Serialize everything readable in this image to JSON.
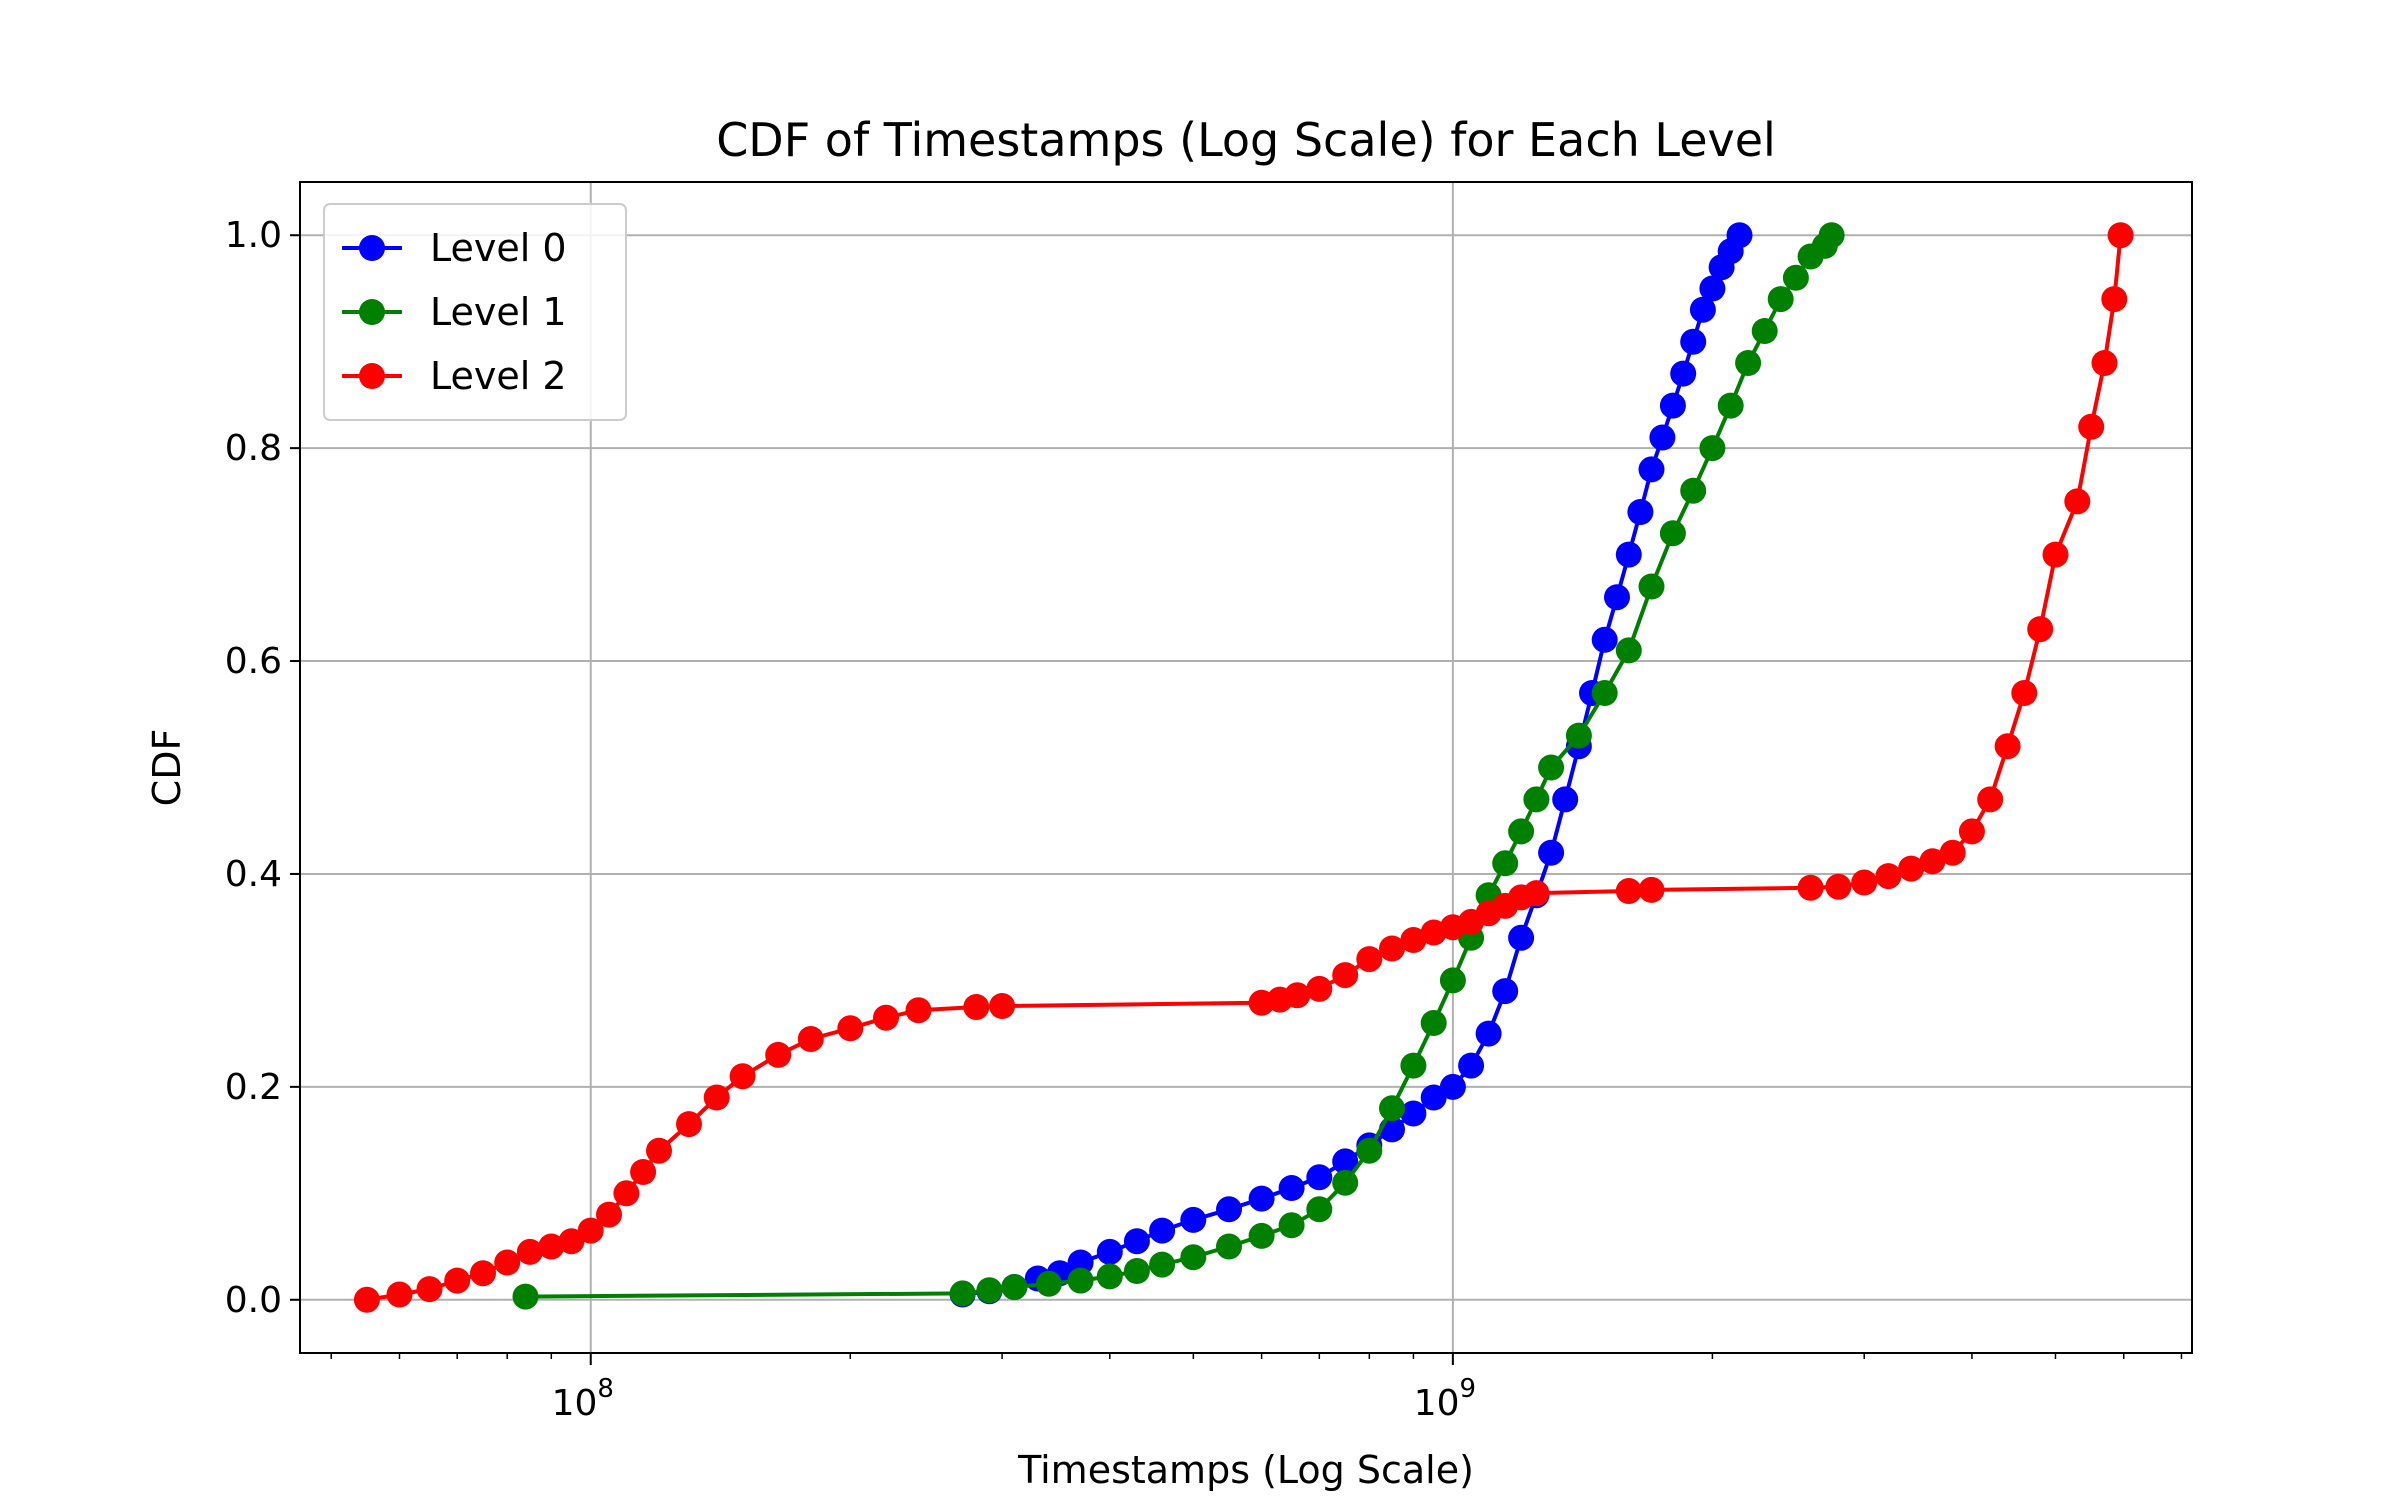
{
  "chart_data": {
    "type": "line",
    "title": "CDF of Timestamps (Log Scale) for Each Level",
    "xlabel": "Timestamps (Log Scale)",
    "ylabel": "CDF",
    "xscale": "log",
    "xlim": [
      46000000,
      7200000000
    ],
    "ylim": [
      -0.05,
      1.05
    ],
    "x_ticks": [
      {
        "value": 100000000,
        "base": "10",
        "exp": "8"
      },
      {
        "value": 1000000000,
        "base": "10",
        "exp": "9"
      }
    ],
    "y_ticks": [
      {
        "value": 0.0,
        "label": "0.0"
      },
      {
        "value": 0.2,
        "label": "0.2"
      },
      {
        "value": 0.4,
        "label": "0.4"
      },
      {
        "value": 0.6,
        "label": "0.6"
      },
      {
        "value": 0.8,
        "label": "0.8"
      },
      {
        "value": 1.0,
        "label": "1.0"
      }
    ],
    "grid": true,
    "legend": "upper-left",
    "series": [
      {
        "name": "Level 0",
        "color": "#0000ff",
        "points": [
          [
            270000000,
            0.005
          ],
          [
            290000000,
            0.008
          ],
          [
            310000000,
            0.012
          ],
          [
            330000000,
            0.02
          ],
          [
            350000000,
            0.025
          ],
          [
            370000000,
            0.035
          ],
          [
            400000000,
            0.045
          ],
          [
            430000000,
            0.055
          ],
          [
            460000000,
            0.065
          ],
          [
            500000000,
            0.075
          ],
          [
            550000000,
            0.085
          ],
          [
            600000000,
            0.095
          ],
          [
            650000000,
            0.105
          ],
          [
            700000000,
            0.115
          ],
          [
            750000000,
            0.13
          ],
          [
            800000000,
            0.145
          ],
          [
            850000000,
            0.16
          ],
          [
            900000000,
            0.175
          ],
          [
            950000000,
            0.19
          ],
          [
            1000000000,
            0.2
          ],
          [
            1050000000,
            0.22
          ],
          [
            1100000000,
            0.25
          ],
          [
            1150000000,
            0.29
          ],
          [
            1200000000,
            0.34
          ],
          [
            1250000000,
            0.38
          ],
          [
            1300000000,
            0.42
          ],
          [
            1350000000,
            0.47
          ],
          [
            1400000000,
            0.52
          ],
          [
            1450000000,
            0.57
          ],
          [
            1500000000,
            0.62
          ],
          [
            1550000000,
            0.66
          ],
          [
            1600000000,
            0.7
          ],
          [
            1650000000,
            0.74
          ],
          [
            1700000000,
            0.78
          ],
          [
            1750000000,
            0.81
          ],
          [
            1800000000,
            0.84
          ],
          [
            1850000000,
            0.87
          ],
          [
            1900000000,
            0.9
          ],
          [
            1950000000,
            0.93
          ],
          [
            2000000000,
            0.95
          ],
          [
            2050000000,
            0.97
          ],
          [
            2100000000,
            0.985
          ],
          [
            2150000000,
            1.0
          ]
        ]
      },
      {
        "name": "Level 1",
        "color": "#008000",
        "points": [
          [
            84000000,
            0.003
          ],
          [
            270000000,
            0.006
          ],
          [
            290000000,
            0.009
          ],
          [
            310000000,
            0.012
          ],
          [
            340000000,
            0.015
          ],
          [
            370000000,
            0.018
          ],
          [
            400000000,
            0.022
          ],
          [
            430000000,
            0.027
          ],
          [
            460000000,
            0.033
          ],
          [
            500000000,
            0.04
          ],
          [
            550000000,
            0.05
          ],
          [
            600000000,
            0.06
          ],
          [
            650000000,
            0.07
          ],
          [
            700000000,
            0.085
          ],
          [
            750000000,
            0.11
          ],
          [
            800000000,
            0.14
          ],
          [
            850000000,
            0.18
          ],
          [
            900000000,
            0.22
          ],
          [
            950000000,
            0.26
          ],
          [
            1000000000,
            0.3
          ],
          [
            1050000000,
            0.34
          ],
          [
            1100000000,
            0.38
          ],
          [
            1150000000,
            0.41
          ],
          [
            1200000000,
            0.44
          ],
          [
            1250000000,
            0.47
          ],
          [
            1300000000,
            0.5
          ],
          [
            1400000000,
            0.53
          ],
          [
            1500000000,
            0.57
          ],
          [
            1600000000,
            0.61
          ],
          [
            1700000000,
            0.67
          ],
          [
            1800000000,
            0.72
          ],
          [
            1900000000,
            0.76
          ],
          [
            2000000000,
            0.8
          ],
          [
            2100000000,
            0.84
          ],
          [
            2200000000,
            0.88
          ],
          [
            2300000000,
            0.91
          ],
          [
            2400000000,
            0.94
          ],
          [
            2500000000,
            0.96
          ],
          [
            2600000000,
            0.98
          ],
          [
            2700000000,
            0.99
          ],
          [
            2750000000,
            1.0
          ]
        ]
      },
      {
        "name": "Level 2",
        "color": "#ff0000",
        "points": [
          [
            55000000,
            0.0
          ],
          [
            60000000,
            0.005
          ],
          [
            65000000,
            0.01
          ],
          [
            70000000,
            0.018
          ],
          [
            75000000,
            0.025
          ],
          [
            80000000,
            0.035
          ],
          [
            85000000,
            0.045
          ],
          [
            90000000,
            0.05
          ],
          [
            95000000,
            0.055
          ],
          [
            100000000,
            0.065
          ],
          [
            105000000,
            0.08
          ],
          [
            110000000,
            0.1
          ],
          [
            115000000,
            0.12
          ],
          [
            120000000,
            0.14
          ],
          [
            130000000,
            0.165
          ],
          [
            140000000,
            0.19
          ],
          [
            150000000,
            0.21
          ],
          [
            165000000,
            0.23
          ],
          [
            180000000,
            0.245
          ],
          [
            200000000,
            0.255
          ],
          [
            220000000,
            0.265
          ],
          [
            240000000,
            0.272
          ],
          [
            280000000,
            0.275
          ],
          [
            300000000,
            0.276
          ],
          [
            600000000,
            0.279
          ],
          [
            630000000,
            0.282
          ],
          [
            660000000,
            0.286
          ],
          [
            700000000,
            0.292
          ],
          [
            750000000,
            0.305
          ],
          [
            800000000,
            0.32
          ],
          [
            850000000,
            0.33
          ],
          [
            900000000,
            0.338
          ],
          [
            950000000,
            0.345
          ],
          [
            1000000000,
            0.35
          ],
          [
            1050000000,
            0.355
          ],
          [
            1100000000,
            0.363
          ],
          [
            1150000000,
            0.37
          ],
          [
            1200000000,
            0.378
          ],
          [
            1250000000,
            0.382
          ],
          [
            1600000000,
            0.384
          ],
          [
            1700000000,
            0.385
          ],
          [
            2600000000,
            0.387
          ],
          [
            2800000000,
            0.388
          ],
          [
            3000000000,
            0.392
          ],
          [
            3200000000,
            0.398
          ],
          [
            3400000000,
            0.405
          ],
          [
            3600000000,
            0.412
          ],
          [
            3800000000,
            0.42
          ],
          [
            4000000000,
            0.44
          ],
          [
            4200000000,
            0.47
          ],
          [
            4400000000,
            0.52
          ],
          [
            4600000000,
            0.57
          ],
          [
            4800000000,
            0.63
          ],
          [
            5000000000,
            0.7
          ],
          [
            5300000000,
            0.75
          ],
          [
            5500000000,
            0.82
          ],
          [
            5700000000,
            0.88
          ],
          [
            5850000000,
            0.94
          ],
          [
            5950000000,
            1.0
          ]
        ]
      }
    ]
  }
}
